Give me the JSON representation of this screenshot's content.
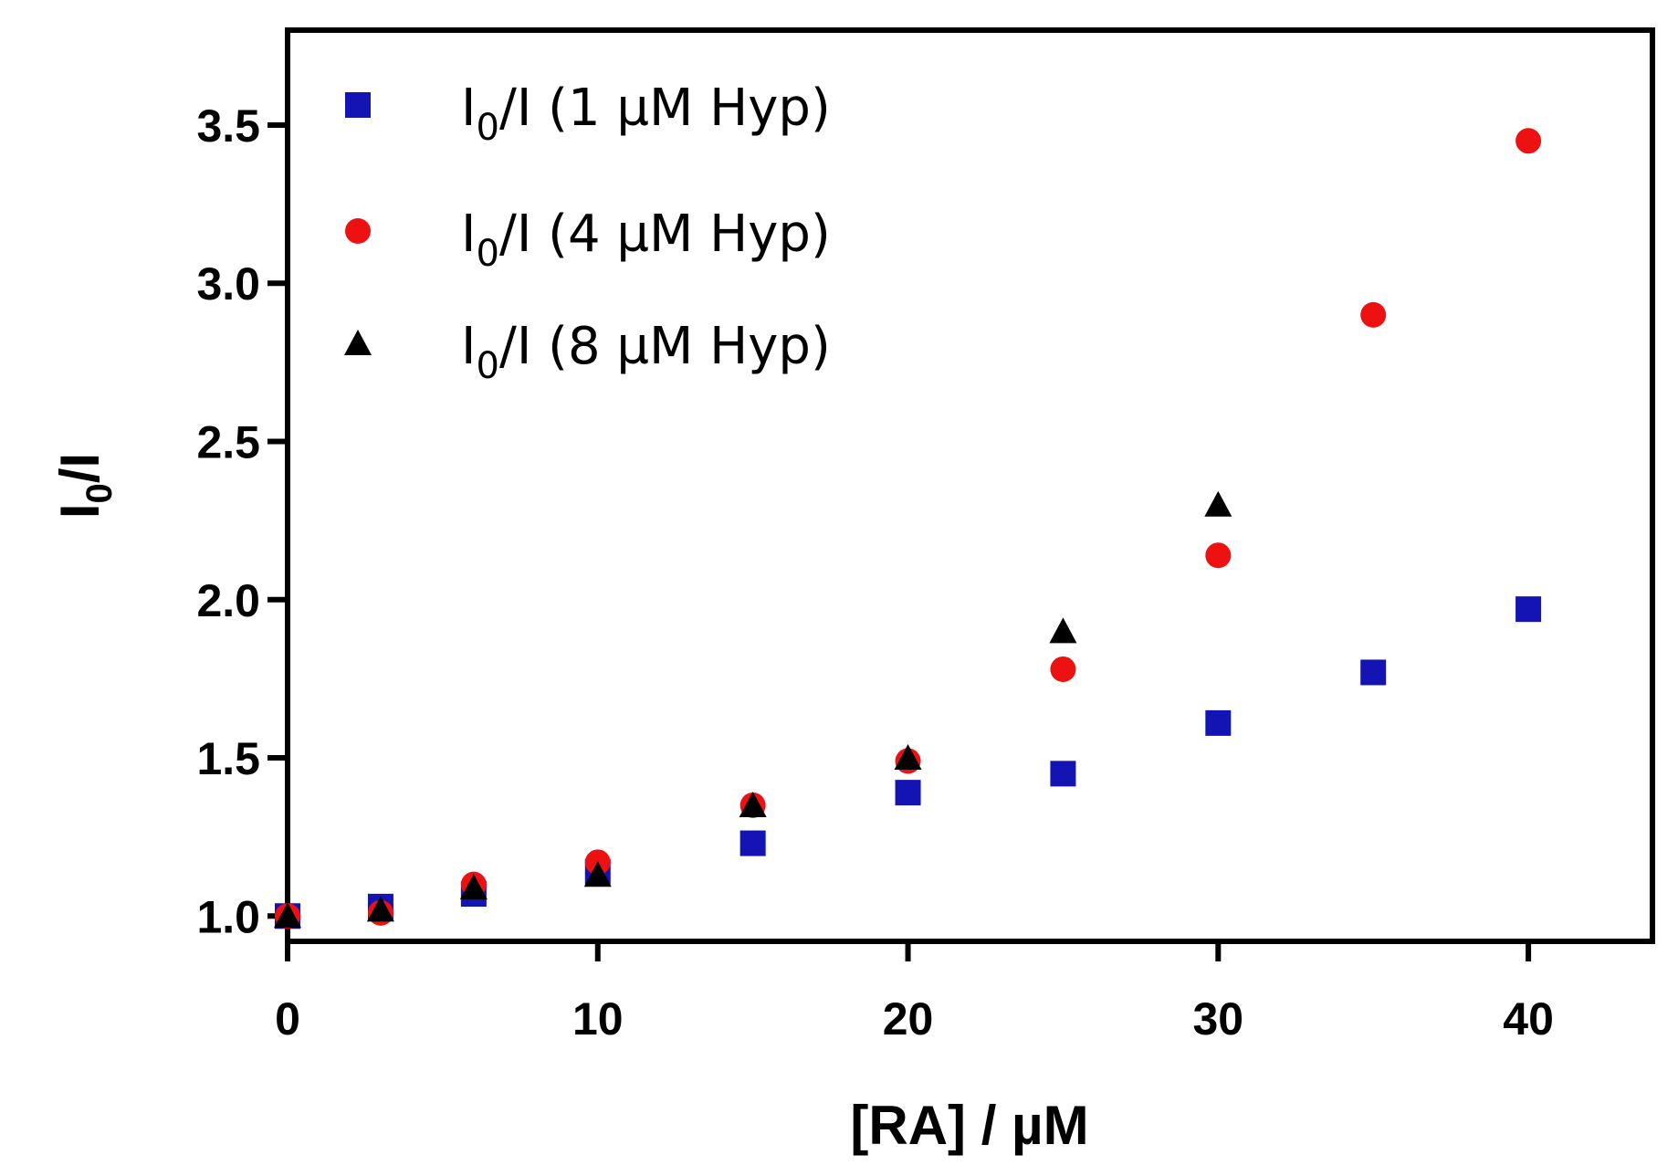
{
  "chart_data": {
    "type": "scatter",
    "title": "",
    "xlabel": "[RA] / µM",
    "ylabel": {
      "main": "I",
      "sub": "0",
      "tail": "/I"
    },
    "xlim": [
      0,
      44
    ],
    "ylim": [
      0.92,
      3.8
    ],
    "xticks": [
      0,
      10,
      20,
      30,
      40
    ],
    "xtick_labels": [
      "0",
      "10",
      "20",
      "30",
      "40"
    ],
    "yticks": [
      1.0,
      1.5,
      2.0,
      2.5,
      3.0,
      3.5
    ],
    "ytick_labels": [
      "1.0",
      "1.5",
      "2.0",
      "2.5",
      "3.0",
      "3.5"
    ],
    "grid": false,
    "legend_position": "top-left",
    "series": [
      {
        "name": "I0/I (1 µM Hyp)",
        "label_main": "I",
        "label_sub": "0",
        "label_tail": "/I (1 µM Hyp)",
        "marker": "square",
        "color": "#1414b4",
        "x": [
          0,
          3,
          6,
          10,
          15,
          20,
          25,
          30,
          35,
          40
        ],
        "y": [
          1.0,
          1.03,
          1.07,
          1.14,
          1.23,
          1.39,
          1.45,
          1.61,
          1.77,
          1.97
        ]
      },
      {
        "name": "I0/I (4 µM Hyp)",
        "label_main": "I",
        "label_sub": "0",
        "label_tail": "/I (4 µM Hyp)",
        "marker": "circle",
        "color": "#ee1111",
        "x": [
          0,
          3,
          6,
          10,
          15,
          20,
          25,
          30,
          35,
          40
        ],
        "y": [
          1.0,
          1.01,
          1.1,
          1.17,
          1.35,
          1.49,
          1.78,
          2.14,
          2.9,
          3.45
        ]
      },
      {
        "name": "I0/I (8 µM Hyp)",
        "label_main": "I",
        "label_sub": "0",
        "label_tail": "/I (8 µM Hyp)",
        "marker": "triangle",
        "color": "#000000",
        "x": [
          0,
          3,
          6,
          10,
          15,
          20,
          25,
          30
        ],
        "y": [
          1.0,
          1.02,
          1.09,
          1.13,
          1.35,
          1.5,
          1.9,
          2.3
        ]
      }
    ]
  }
}
